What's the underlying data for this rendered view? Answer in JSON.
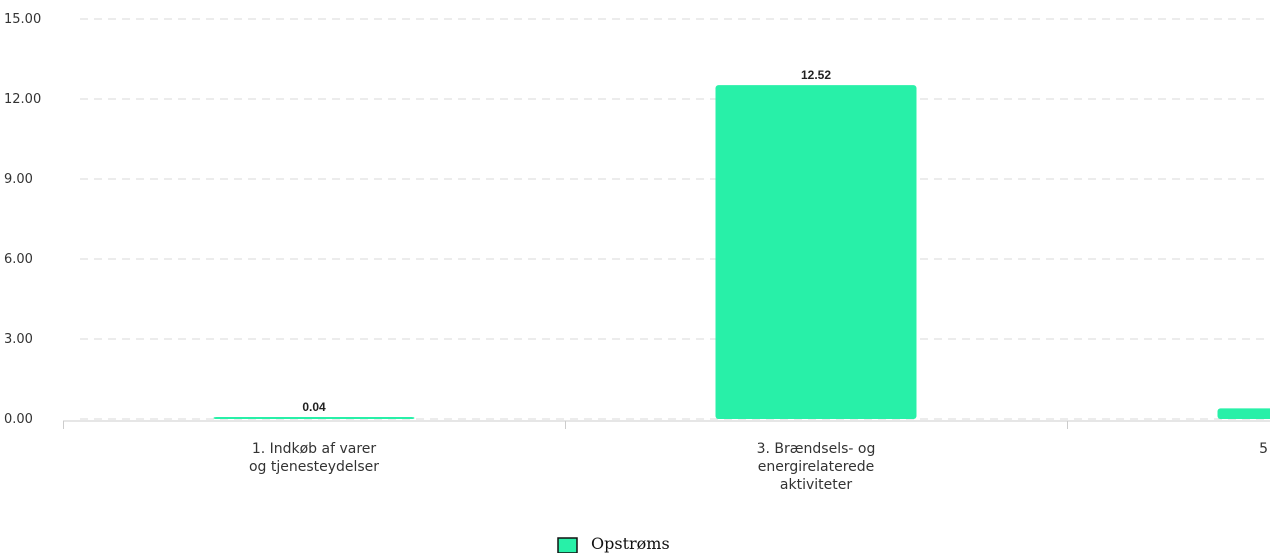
{
  "chart_data": {
    "type": "bar",
    "categories": [
      [
        "1. Indkøb af varer",
        "og tjenesteydelser"
      ],
      [
        "3. Brændsels- og",
        "energirelaterede",
        "aktiviteter"
      ],
      [
        "5"
      ]
    ],
    "series": [
      {
        "name": "Opstrøms",
        "values": [
          0.04,
          12.52,
          0.4
        ]
      }
    ],
    "data_labels": [
      "0.04",
      "12.52",
      ""
    ],
    "yticks": [
      "0.00",
      "3.00",
      "6.00",
      "9.00",
      "12.00",
      "15.00"
    ],
    "ylim": [
      0,
      15
    ],
    "grid": true,
    "legend": "bottom-center",
    "colors": {
      "bar": "#28f0a8",
      "legend_stroke": "#111111",
      "grid": "#d9d9d9"
    }
  }
}
